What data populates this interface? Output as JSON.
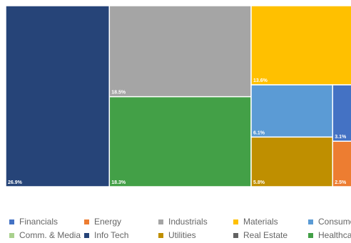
{
  "chart_data": {
    "type": "treemap",
    "items": [
      {
        "name": "Info Tech",
        "value": 26.9,
        "label": "26.9%",
        "color": "#264478"
      },
      {
        "name": "Industrials",
        "value": 18.5,
        "label": "18.5%",
        "color": "#A5A5A5"
      },
      {
        "name": "Healthcare",
        "value": 18.3,
        "label": "18.3%",
        "color": "#43A047"
      },
      {
        "name": "Materials",
        "value": 13.6,
        "label": "13.6%",
        "color": "#FFC000"
      },
      {
        "name": "Consumer",
        "value": 6.1,
        "label": "6.1%",
        "color": "#5B9BD5"
      },
      {
        "name": "Utilities",
        "value": 5.8,
        "label": "5.8%",
        "color": "#BF8F00"
      },
      {
        "name": "Financials",
        "value": 3.1,
        "label": "3.1%",
        "color": "#4472C4"
      },
      {
        "name": "Energy",
        "value": 2.5,
        "label": "2.5%",
        "color": "#ED7D31"
      }
    ],
    "legend": [
      {
        "label": "Financials",
        "color": "#4472C4"
      },
      {
        "label": "Energy",
        "color": "#ED7D31"
      },
      {
        "label": "Industrials",
        "color": "#A5A5A5"
      },
      {
        "label": "Materials",
        "color": "#FFC000"
      },
      {
        "label": "Consumer",
        "color": "#5B9BD5"
      },
      {
        "label": "Comm. & Media",
        "color": "#A9D18E"
      },
      {
        "label": "Info Tech",
        "color": "#264478"
      },
      {
        "label": "Utilities",
        "color": "#BF8F00"
      },
      {
        "label": "Real Estate",
        "color": "#636363"
      },
      {
        "label": "Healthcare",
        "color": "#43A047"
      }
    ],
    "legend_position": "bottom"
  }
}
